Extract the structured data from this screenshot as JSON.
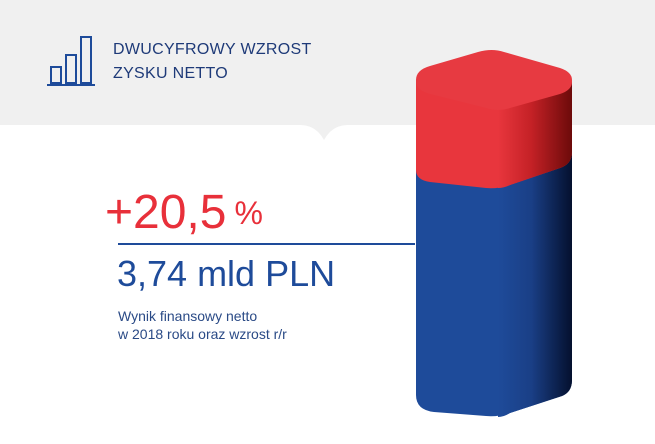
{
  "header": {
    "title_line1": "DWUCYFROWY WZROST",
    "title_line2": "ZYSKU NETTO",
    "icon": "bar-chart-icon"
  },
  "growth": {
    "value": "+20,5",
    "unit": "%"
  },
  "amount": "3,74 mld PLN",
  "description": {
    "line1": "Wynik finansowy netto",
    "line2": "w 2018 roku oraz wzrost r/r"
  },
  "colors": {
    "red": "#e8303a",
    "blue": "#1e4b9a",
    "navy": "#1e3a78",
    "band": "#f0f0f0"
  }
}
